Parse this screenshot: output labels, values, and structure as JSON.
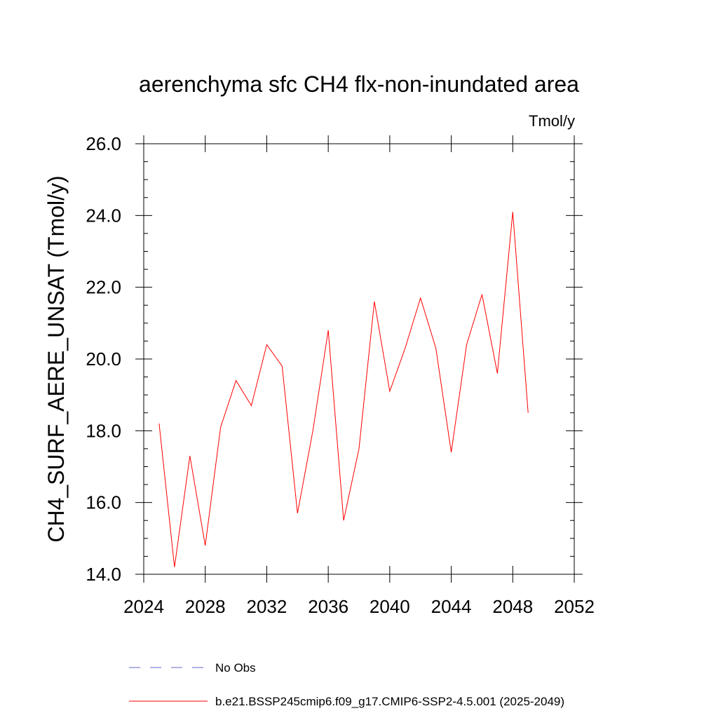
{
  "chart_data": {
    "type": "line",
    "title": "aerenchyma sfc CH4 flx-non-inundated area",
    "units": "Tmol/y",
    "ylabel": "CH4_SURF_AERE_UNSAT  (Tmol/y)",
    "xlabel": "",
    "xlim": [
      2024,
      2052
    ],
    "ylim": [
      14.0,
      26.0
    ],
    "x_ticks": [
      2024,
      2028,
      2032,
      2036,
      2040,
      2044,
      2048,
      2052
    ],
    "x_tick_labels": [
      "2024",
      "2028",
      "2032",
      "2036",
      "2040",
      "2044",
      "2048",
      "2052"
    ],
    "y_ticks": [
      14.0,
      16.0,
      18.0,
      20.0,
      22.0,
      24.0,
      26.0
    ],
    "y_tick_labels": [
      "14.0",
      "16.0",
      "18.0",
      "20.0",
      "22.0",
      "24.0",
      "26.0"
    ],
    "grid": false,
    "legend_position": "bottom",
    "series": [
      {
        "name": "b.e21.BSSP245cmip6.f09_g17.CMIP6-SSP2-4.5.001 (2025-2049)",
        "color": "#ff0000",
        "style": "solid",
        "x": [
          2025,
          2026,
          2027,
          2028,
          2029,
          2030,
          2031,
          2032,
          2033,
          2034,
          2035,
          2036,
          2037,
          2038,
          2039,
          2040,
          2041,
          2042,
          2043,
          2044,
          2045,
          2046,
          2047,
          2048,
          2049
        ],
        "values": [
          18.2,
          14.2,
          17.3,
          14.8,
          18.1,
          19.4,
          18.7,
          20.4,
          19.8,
          15.7,
          18.0,
          20.8,
          15.5,
          17.5,
          21.6,
          19.1,
          20.3,
          21.7,
          20.3,
          17.4,
          20.4,
          21.8,
          19.6,
          24.1,
          18.5
        ]
      }
    ],
    "legend": [
      {
        "label": "No Obs",
        "color": "#6666cc",
        "style": "dashed"
      },
      {
        "label": "b.e21.BSSP245cmip6.f09_g17.CMIP6-SSP2-4.5.001 (2025-2049)",
        "color": "#ff0000",
        "style": "solid"
      }
    ]
  }
}
